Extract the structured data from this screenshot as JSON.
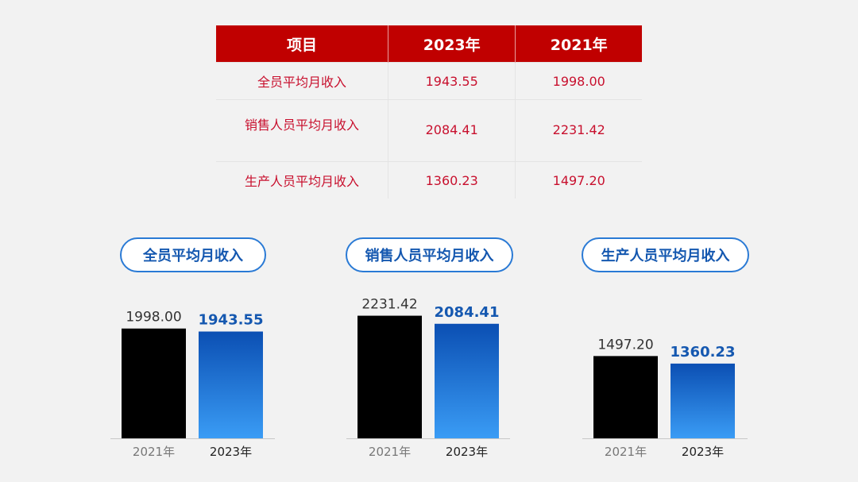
{
  "table": {
    "headers": [
      "项目",
      "2023年",
      "2021年"
    ],
    "rows": [
      {
        "label": "全员平均月收入",
        "v2023": "1943.55",
        "v2021": "1998.00"
      },
      {
        "label": "销售人员平均月收入",
        "v2023": "2084.41",
        "v2021": "2231.42"
      },
      {
        "label": "生产人员平均月收入",
        "v2023": "1360.23",
        "v2021": "1497.20"
      }
    ]
  },
  "colors": {
    "header_bg": "#c00000",
    "table_text": "#c8102e",
    "bar_2021": "#000000",
    "bar_2023_top": "#0b4fb3",
    "bar_2023_bottom": "#3a9cf5",
    "value_2023": "#1558b0"
  },
  "chart_data": [
    {
      "type": "bar",
      "title": "全员平均月收入",
      "categories": [
        "2021年",
        "2023年"
      ],
      "values": [
        1998.0,
        1943.55
      ],
      "value_labels": [
        "1998.00",
        "1943.55"
      ]
    },
    {
      "type": "bar",
      "title": "销售人员平均月收入",
      "categories": [
        "2021年",
        "2023年"
      ],
      "values": [
        2231.42,
        2084.41
      ],
      "value_labels": [
        "2231.42",
        "2084.41"
      ]
    },
    {
      "type": "bar",
      "title": "生产人员平均月收入",
      "categories": [
        "2021年",
        "2023年"
      ],
      "values": [
        1497.2,
        1360.23
      ],
      "value_labels": [
        "1497.20",
        "1360.23"
      ]
    }
  ]
}
